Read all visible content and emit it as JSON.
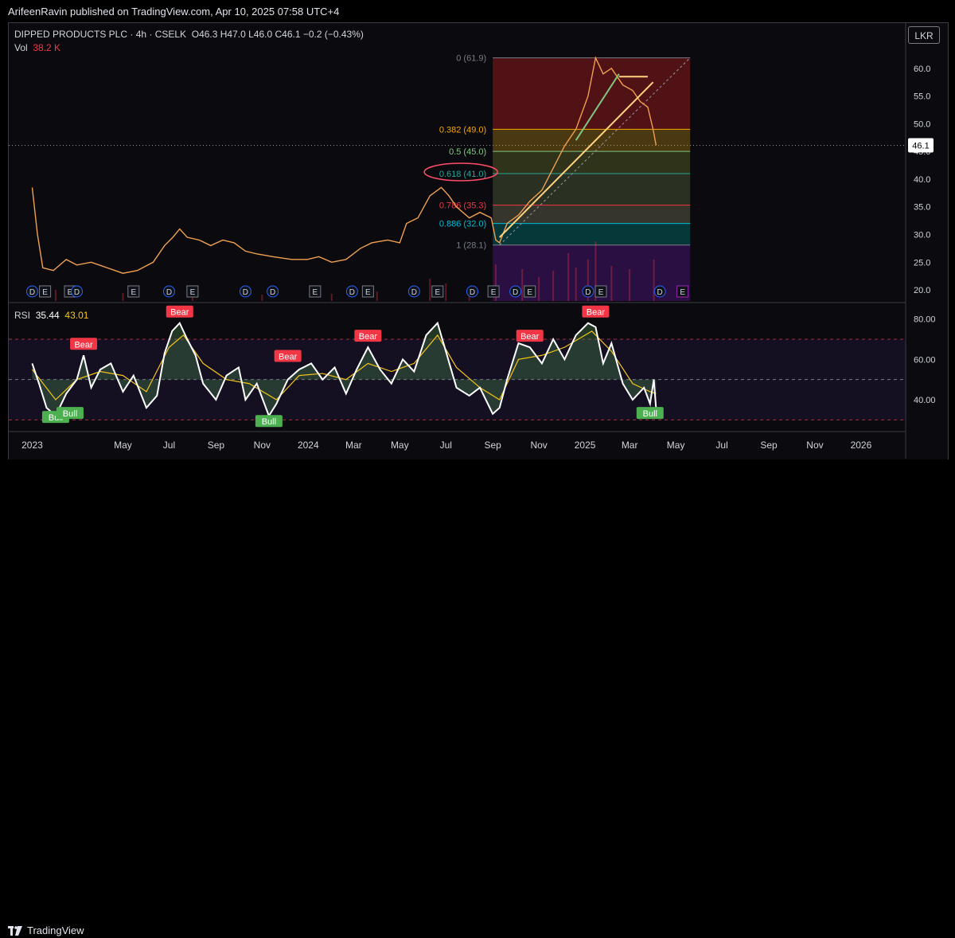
{
  "header": {
    "publisher_line": "ArifeenRavin published on TradingView.com, Apr 10, 2025 07:58 UTC+4"
  },
  "legend": {
    "symbol": "DIPPED PRODUCTS PLC · 4h · CSELK",
    "ohlc": "O46.3  H47.0  L46.0  C46.1  −0.2 (−0.43%)",
    "vol_label": "Vol",
    "vol_value": "38.2 K"
  },
  "currency_button": "LKR",
  "footer": {
    "brand": "TradingView"
  },
  "colors": {
    "price_line": "#f0a050",
    "rsi_line": "#ffffff",
    "rsi_ma": "#f5c518",
    "bear_badge": "#f23645",
    "bull_badge": "#4caf50",
    "fib_trend": "#ffd27f"
  },
  "chart_data": [
    {
      "type": "line",
      "title": "DIPPED PRODUCTS PLC · 4h · CSELK",
      "x_tick_labels": [
        "2023",
        "May",
        "Jul",
        "Sep",
        "Nov",
        "2024",
        "Mar",
        "May",
        "Jul",
        "Sep",
        "Nov",
        "2025",
        "Mar",
        "May",
        "Jul",
        "Sep",
        "Nov",
        "2026"
      ],
      "y_axis": {
        "ticks": [
          "60.0",
          "55.0",
          "50.0",
          "45.0",
          "40.0",
          "35.0",
          "30.0",
          "25.0",
          "20.0"
        ],
        "range": [
          18,
          64
        ]
      },
      "last_price_label": "46.1",
      "series": [
        {
          "values": [
            [
              "2023-01-01",
              38.5
            ],
            [
              "2023-01-08",
              30
            ],
            [
              "2023-01-15",
              24
            ],
            [
              "2023-01-29",
              23.5
            ],
            [
              "2023-02-15",
              25.5
            ],
            [
              "2023-03-01",
              24.5
            ],
            [
              "2023-03-20",
              25
            ],
            [
              "2023-04-10",
              24
            ],
            [
              "2023-05-01",
              23
            ],
            [
              "2023-05-20",
              23.5
            ],
            [
              "2023-06-10",
              25
            ],
            [
              "2023-06-25",
              28
            ],
            [
              "2023-07-06",
              29.5
            ],
            [
              "2023-07-15",
              31
            ],
            [
              "2023-07-25",
              29.5
            ],
            [
              "2023-08-10",
              29
            ],
            [
              "2023-08-25",
              28
            ],
            [
              "2023-09-10",
              29
            ],
            [
              "2023-09-25",
              28.5
            ],
            [
              "2023-10-10",
              27
            ],
            [
              "2023-10-25",
              26.5
            ],
            [
              "2023-11-15",
              26
            ],
            [
              "2023-12-10",
              25.5
            ],
            [
              "2023-12-31",
              25.5
            ],
            [
              "2024-01-15",
              26
            ],
            [
              "2024-02-01",
              25
            ],
            [
              "2024-02-20",
              25.5
            ],
            [
              "2024-03-10",
              27.5
            ],
            [
              "2024-03-25",
              28.5
            ],
            [
              "2024-04-15",
              29
            ],
            [
              "2024-05-01",
              28.5
            ],
            [
              "2024-05-10",
              32
            ],
            [
              "2024-05-25",
              33
            ],
            [
              "2024-06-10",
              37
            ],
            [
              "2024-06-25",
              38.5
            ],
            [
              "2024-07-05",
              37
            ],
            [
              "2024-07-15",
              35
            ],
            [
              "2024-08-01",
              33
            ],
            [
              "2024-08-15",
              34
            ],
            [
              "2024-08-30",
              33
            ],
            [
              "2024-09-05",
              29
            ],
            [
              "2024-09-10",
              28.5
            ],
            [
              "2024-09-20",
              32
            ],
            [
              "2024-10-05",
              33.5
            ],
            [
              "2024-10-20",
              36
            ],
            [
              "2024-11-05",
              38
            ],
            [
              "2024-11-20",
              42
            ],
            [
              "2024-12-05",
              46
            ],
            [
              "2024-12-20",
              49
            ],
            [
              "2025-01-05",
              55
            ],
            [
              "2025-01-15",
              61.9
            ],
            [
              "2025-01-25",
              59
            ],
            [
              "2025-02-05",
              60
            ],
            [
              "2025-02-20",
              57
            ],
            [
              "2025-03-05",
              56
            ],
            [
              "2025-03-15",
              54
            ],
            [
              "2025-03-25",
              53
            ],
            [
              "2025-04-01",
              49
            ],
            [
              "2025-04-05",
              46.1
            ]
          ]
        }
      ],
      "volume_series": {
        "values": [
          [
            "2023-02-01",
            14
          ],
          [
            "2023-05-01",
            10
          ],
          [
            "2023-08-01",
            9
          ],
          [
            "2023-11-01",
            8
          ],
          [
            "2024-02-01",
            9
          ],
          [
            "2024-04-01",
            12
          ],
          [
            "2024-06-10",
            28
          ],
          [
            "2024-07-01",
            22
          ],
          [
            "2024-08-01",
            12
          ],
          [
            "2024-09-05",
            46
          ],
          [
            "2024-10-10",
            40
          ],
          [
            "2024-11-01",
            30
          ],
          [
            "2024-11-20",
            38
          ],
          [
            "2024-12-10",
            60
          ],
          [
            "2024-12-20",
            42
          ],
          [
            "2025-01-05",
            52
          ],
          [
            "2025-01-15",
            75
          ],
          [
            "2025-02-05",
            44
          ],
          [
            "2025-03-01",
            40
          ],
          [
            "2025-04-02",
            52
          ]
        ]
      },
      "fibonacci": {
        "levels": [
          {
            "label": "0 (61.9)",
            "price": 61.9,
            "color": "#787b86"
          },
          {
            "label": "0.382 (49.0)",
            "price": 49.0,
            "color": "#f7a600"
          },
          {
            "label": "0.5 (45.0)",
            "price": 45.0,
            "color": "#81c784"
          },
          {
            "label": "0.618 (41.0)",
            "price": 41.0,
            "color": "#26a69a",
            "highlighted": true
          },
          {
            "label": "0.786 (35.3)",
            "price": 35.3,
            "color": "#f23645"
          },
          {
            "label": "0.886 (32.0)",
            "price": 32.0,
            "color": "#00bcd4"
          },
          {
            "label": "1 (28.1)",
            "price": 28.1,
            "color": "#787b86"
          }
        ],
        "start_date": "2024-09-01",
        "end_date": "2025-05-20"
      },
      "trendlines": [
        {
          "from": [
            "2024-09-10",
            29.5
          ],
          "to": [
            "2025-04-01",
            57.5
          ],
          "color": "#ffd27f"
        },
        {
          "from": [
            "2025-02-15",
            58.5
          ],
          "to": [
            "2025-03-25",
            58.5
          ],
          "color": "#ffd27f"
        },
        {
          "from": [
            "2024-12-20",
            47
          ],
          "to": [
            "2025-02-15",
            59
          ],
          "color": "#81c784"
        }
      ],
      "event_markers": [
        {
          "date": "2023-01-01",
          "text": "D"
        },
        {
          "date": "2023-01-18",
          "text": "E"
        },
        {
          "date": "2023-02-20",
          "text": "E"
        },
        {
          "date": "2023-03-01",
          "text": "D"
        },
        {
          "date": "2023-05-15",
          "text": "E"
        },
        {
          "date": "2023-07-01",
          "text": "D"
        },
        {
          "date": "2023-08-01",
          "text": "E"
        },
        {
          "date": "2023-10-10",
          "text": "D"
        },
        {
          "date": "2023-11-15",
          "text": "D"
        },
        {
          "date": "2024-01-10",
          "text": "E"
        },
        {
          "date": "2024-02-28",
          "text": "D"
        },
        {
          "date": "2024-03-20",
          "text": "E"
        },
        {
          "date": "2024-05-20",
          "text": "D"
        },
        {
          "date": "2024-06-20",
          "text": "E"
        },
        {
          "date": "2024-08-05",
          "text": "D"
        },
        {
          "date": "2024-09-02",
          "text": "E"
        },
        {
          "date": "2024-10-01",
          "text": "D"
        },
        {
          "date": "2024-10-20",
          "text": "E"
        },
        {
          "date": "2025-01-05",
          "text": "D"
        },
        {
          "date": "2025-01-22",
          "text": "E"
        },
        {
          "date": "2025-04-10",
          "text": "D"
        },
        {
          "date": "2025-05-10",
          "text": "E"
        }
      ]
    },
    {
      "type": "line",
      "title": "RSI",
      "legend_values": {
        "rsi": "35.44",
        "ma": "43.01"
      },
      "y_axis": {
        "ticks": [
          "80.00",
          "60.00",
          "40.00"
        ],
        "range": [
          25,
          85
        ],
        "bands": [
          30,
          50,
          70
        ]
      },
      "series": [
        {
          "name": "RSI",
          "values": [
            [
              "2023-01-01",
              58
            ],
            [
              "2023-01-10",
              48
            ],
            [
              "2023-01-20",
              36
            ],
            [
              "2023-02-01",
              32
            ],
            [
              "2023-02-15",
              43
            ],
            [
              "2023-03-01",
              50
            ],
            [
              "2023-03-10",
              62
            ],
            [
              "2023-03-20",
              46
            ],
            [
              "2023-04-01",
              55
            ],
            [
              "2023-04-15",
              58
            ],
            [
              "2023-05-01",
              44
            ],
            [
              "2023-05-15",
              52
            ],
            [
              "2023-06-01",
              36
            ],
            [
              "2023-06-15",
              42
            ],
            [
              "2023-06-25",
              63
            ],
            [
              "2023-07-05",
              74
            ],
            [
              "2023-07-15",
              78
            ],
            [
              "2023-07-25",
              70
            ],
            [
              "2023-08-05",
              62
            ],
            [
              "2023-08-15",
              48
            ],
            [
              "2023-09-01",
              40
            ],
            [
              "2023-09-15",
              52
            ],
            [
              "2023-10-01",
              56
            ],
            [
              "2023-10-10",
              40
            ],
            [
              "2023-10-25",
              48
            ],
            [
              "2023-11-10",
              32
            ],
            [
              "2023-11-20",
              38
            ],
            [
              "2023-12-05",
              50
            ],
            [
              "2023-12-20",
              55
            ],
            [
              "2024-01-05",
              58
            ],
            [
              "2024-01-20",
              50
            ],
            [
              "2024-02-05",
              56
            ],
            [
              "2024-02-20",
              43
            ],
            [
              "2024-03-05",
              55
            ],
            [
              "2024-03-20",
              66
            ],
            [
              "2024-04-05",
              55
            ],
            [
              "2024-04-20",
              48
            ],
            [
              "2024-05-05",
              60
            ],
            [
              "2024-05-20",
              54
            ],
            [
              "2024-06-05",
              72
            ],
            [
              "2024-06-20",
              78
            ],
            [
              "2024-07-01",
              64
            ],
            [
              "2024-07-15",
              46
            ],
            [
              "2024-08-01",
              42
            ],
            [
              "2024-08-15",
              46
            ],
            [
              "2024-09-01",
              33
            ],
            [
              "2024-09-10",
              36
            ],
            [
              "2024-09-20",
              50
            ],
            [
              "2024-10-05",
              68
            ],
            [
              "2024-10-20",
              66
            ],
            [
              "2024-11-05",
              58
            ],
            [
              "2024-11-20",
              70
            ],
            [
              "2024-12-05",
              60
            ],
            [
              "2024-12-20",
              72
            ],
            [
              "2025-01-05",
              78
            ],
            [
              "2025-01-15",
              76
            ],
            [
              "2025-01-25",
              58
            ],
            [
              "2025-02-05",
              68
            ],
            [
              "2025-02-20",
              48
            ],
            [
              "2025-03-05",
              40
            ],
            [
              "2025-03-20",
              46
            ],
            [
              "2025-03-28",
              38
            ],
            [
              "2025-04-02",
              50
            ],
            [
              "2025-04-05",
              35.44
            ]
          ]
        },
        {
          "name": "RSI MA",
          "values": [
            [
              "2023-01-01",
              55
            ],
            [
              "2023-02-01",
              40
            ],
            [
              "2023-03-01",
              50
            ],
            [
              "2023-04-01",
              54
            ],
            [
              "2023-05-01",
              52
            ],
            [
              "2023-06-01",
              44
            ],
            [
              "2023-07-01",
              66
            ],
            [
              "2023-07-20",
              72
            ],
            [
              "2023-08-15",
              58
            ],
            [
              "2023-09-15",
              50
            ],
            [
              "2023-10-15",
              48
            ],
            [
              "2023-11-20",
              40
            ],
            [
              "2023-12-20",
              52
            ],
            [
              "2024-01-20",
              53
            ],
            [
              "2024-02-20",
              50
            ],
            [
              "2024-03-20",
              58
            ],
            [
              "2024-04-20",
              54
            ],
            [
              "2024-05-20",
              58
            ],
            [
              "2024-06-20",
              72
            ],
            [
              "2024-07-15",
              56
            ],
            [
              "2024-08-15",
              46
            ],
            [
              "2024-09-10",
              40
            ],
            [
              "2024-10-05",
              60
            ],
            [
              "2024-11-05",
              62
            ],
            [
              "2024-12-05",
              66
            ],
            [
              "2025-01-10",
              74
            ],
            [
              "2025-02-05",
              64
            ],
            [
              "2025-03-05",
              48
            ],
            [
              "2025-03-28",
              44
            ],
            [
              "2025-04-05",
              43.01
            ]
          ]
        }
      ],
      "signals": [
        {
          "date": "2023-02-01",
          "text": "Bull",
          "kind": "bull",
          "rsi": 36
        },
        {
          "date": "2023-02-20",
          "text": "Bull",
          "kind": "bull",
          "rsi": 38
        },
        {
          "date": "2023-03-10",
          "text": "Bear",
          "kind": "bear",
          "rsi": 62
        },
        {
          "date": "2023-07-15",
          "text": "Bear",
          "kind": "bear",
          "rsi": 78
        },
        {
          "date": "2023-11-10",
          "text": "Bull",
          "kind": "bull",
          "rsi": 34
        },
        {
          "date": "2023-12-05",
          "text": "Bear",
          "kind": "bear",
          "rsi": 56
        },
        {
          "date": "2024-03-20",
          "text": "Bear",
          "kind": "bear",
          "rsi": 66
        },
        {
          "date": "2024-10-20",
          "text": "Bear",
          "kind": "bear",
          "rsi": 66
        },
        {
          "date": "2025-01-15",
          "text": "Bear",
          "kind": "bear",
          "rsi": 78
        },
        {
          "date": "2025-03-28",
          "text": "Bull",
          "kind": "bull",
          "rsi": 38
        }
      ]
    }
  ]
}
